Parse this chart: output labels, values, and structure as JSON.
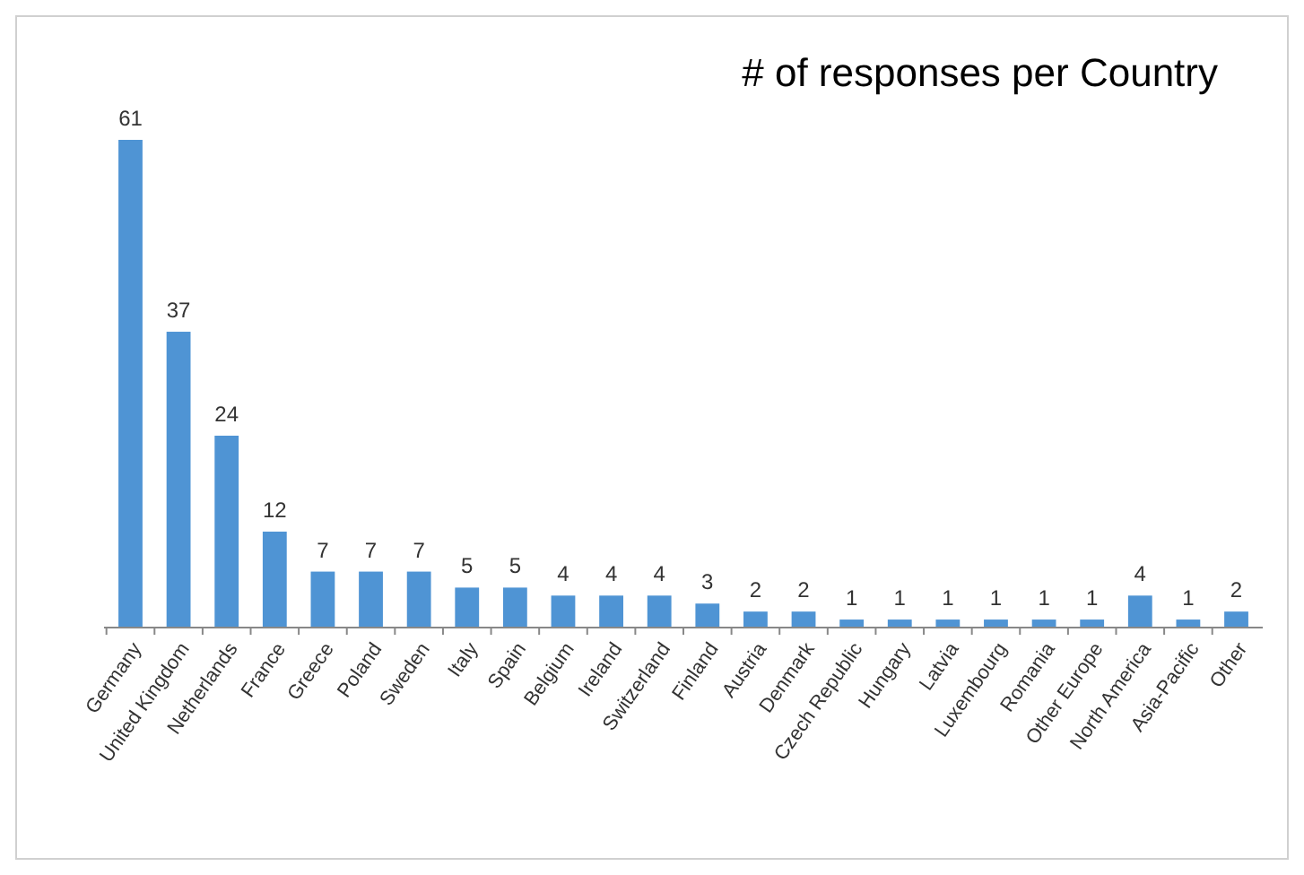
{
  "chart_data": {
    "type": "bar",
    "title": "# of responses per Country",
    "categories": [
      "Germany",
      "United Kingdom",
      "Netherlands",
      "France",
      "Greece",
      "Poland",
      "Sweden",
      "Italy",
      "Spain",
      "Belgium",
      "Ireland",
      "Switzerland",
      "Finland",
      "Austria",
      "Denmark",
      "Czech Republic",
      "Hungary",
      "Latvia",
      "Luxembourg",
      "Romania",
      "Other Europe",
      "North America",
      "Asia-Pacific",
      "Other"
    ],
    "values": [
      61,
      37,
      24,
      12,
      7,
      7,
      7,
      5,
      5,
      4,
      4,
      4,
      3,
      2,
      2,
      1,
      1,
      1,
      1,
      1,
      1,
      4,
      1,
      2
    ],
    "color": "#4f94d4",
    "data_labels": true
  }
}
